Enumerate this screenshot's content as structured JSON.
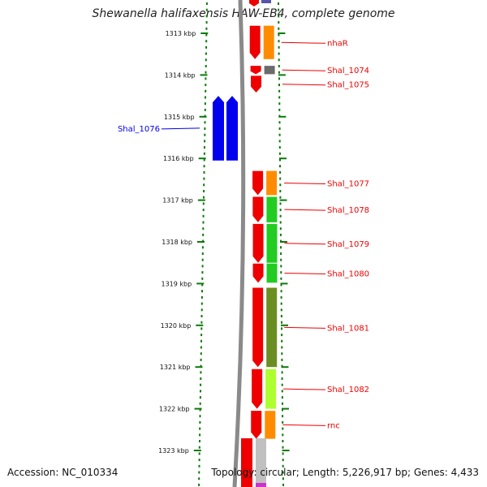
{
  "title": "Shewanella halifaxensis HAW-EB4, complete genome",
  "footer": {
    "accession": "Accession: NC_010334",
    "topology": "Topology: circular; Length: 5,226,917 bp; Genes: 4,433"
  },
  "colors": {
    "forward_strand": "#0000ee",
    "reverse_strand": "#ee0000",
    "tick": "#0a7a0a",
    "backbone": "#8a8a8a"
  },
  "axis": {
    "unit": "kbp",
    "ticks": [
      "1313 kbp",
      "1314 kbp",
      "1315 kbp",
      "1316 kbp",
      "1317 kbp",
      "1318 kbp",
      "1319 kbp",
      "1320 kbp",
      "1321 kbp",
      "1322 kbp",
      "1323 kbp"
    ]
  },
  "genes": [
    {
      "name": "nhaR",
      "strand": "reverse",
      "start_kbp": 1312.82,
      "end_kbp": 1313.62,
      "cog_color": "#ff8c00"
    },
    {
      "name": "Shal_1074",
      "strand": "reverse",
      "start_kbp": 1313.78,
      "end_kbp": 1313.98,
      "cog_color": "#6b6b6b"
    },
    {
      "name": "Shal_1075",
      "strand": "reverse",
      "start_kbp": 1314.02,
      "end_kbp": 1314.42,
      "cog_color": null
    },
    {
      "name": "Shal_1076",
      "strand": "forward",
      "start_kbp": 1314.5,
      "end_kbp": 1316.05,
      "cog_color": null
    },
    {
      "name": "Shal_1077",
      "strand": "reverse",
      "start_kbp": 1316.3,
      "end_kbp": 1316.88,
      "cog_color": "#ff8c00"
    },
    {
      "name": "Shal_1078",
      "strand": "reverse",
      "start_kbp": 1316.92,
      "end_kbp": 1317.53,
      "cog_color": "#22cc22"
    },
    {
      "name": "Shal_1079",
      "strand": "reverse",
      "start_kbp": 1317.57,
      "end_kbp": 1318.5,
      "cog_color": "#22cc22"
    },
    {
      "name": "Shal_1080",
      "strand": "reverse",
      "start_kbp": 1318.52,
      "end_kbp": 1318.98,
      "cog_color": "#22cc22"
    },
    {
      "name": "Shal_1081",
      "strand": "reverse",
      "start_kbp": 1319.1,
      "end_kbp": 1321.0,
      "cog_color": "#6b8e23"
    },
    {
      "name": "Shal_1082",
      "strand": "reverse",
      "start_kbp": 1321.05,
      "end_kbp": 1322.0,
      "cog_color": "#adff2f"
    },
    {
      "name": "rnc",
      "strand": "reverse",
      "start_kbp": 1322.05,
      "end_kbp": 1322.72,
      "cog_color": "#ff8c00"
    }
  ]
}
